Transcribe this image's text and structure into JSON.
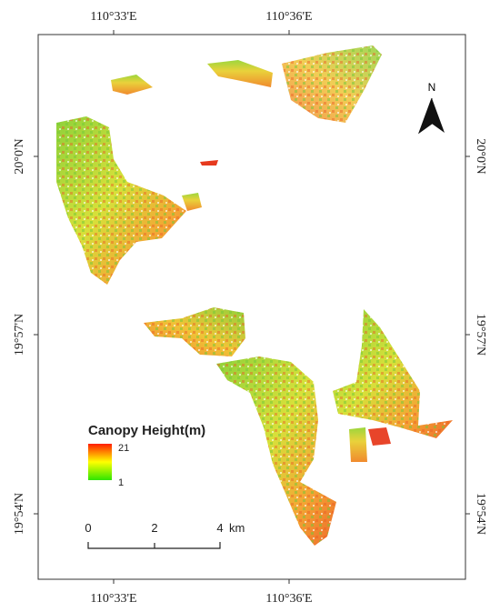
{
  "map": {
    "graticule": {
      "top": [
        "110°33'E",
        "110°36'E"
      ],
      "bottom": [
        "110°33'E",
        "110°36'E"
      ],
      "left": [
        "20°0'N",
        "19°57'N",
        "19°54'N"
      ],
      "right": [
        "20°0'N",
        "19°57'N",
        "19°54'N"
      ]
    },
    "north_arrow": "N",
    "legend": {
      "title": "Canopy Height(m)",
      "max": 21,
      "min": 1
    },
    "scale_bar": {
      "labels": [
        0,
        2,
        4
      ],
      "unit": "km"
    }
  }
}
